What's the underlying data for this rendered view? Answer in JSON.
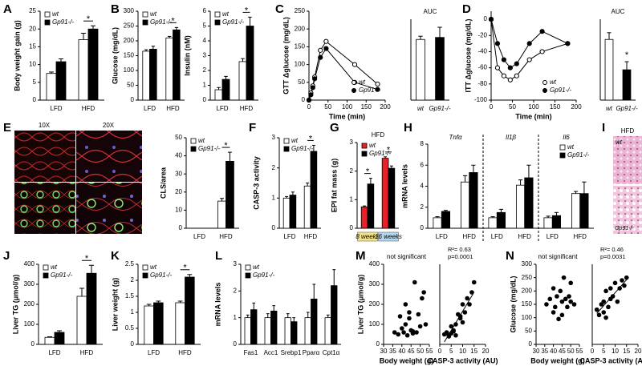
{
  "chart_data": [
    {
      "type": "bar",
      "panel": "A",
      "ylabel": "Body weight gain (g)",
      "categories": [
        "LFD",
        "HFD"
      ],
      "series": [
        {
          "name": "wt",
          "color": "#ffffff",
          "values": [
            7.5,
            17
          ],
          "errors": [
            0.4,
            1.8
          ]
        },
        {
          "name": "Gp91-/-",
          "color": "#000000",
          "values": [
            10.8,
            20
          ],
          "errors": [
            0.8,
            0.9
          ]
        }
      ],
      "ylim": [
        0,
        25
      ],
      "yticks": [
        0,
        5,
        10,
        15,
        20,
        25
      ],
      "legend": "upper left",
      "annotations": [
        "*"
      ]
    },
    {
      "type": "bar",
      "panel": "B",
      "ylabel": "Glucose (mg/dL)",
      "categories": [
        "LFD",
        "HFD"
      ],
      "series": [
        {
          "name": "wt",
          "color": "#ffffff",
          "values": [
            165,
            210
          ],
          "errors": [
            5,
            5
          ]
        },
        {
          "name": "Gp91-/-",
          "color": "#000000",
          "values": [
            172,
            237
          ],
          "errors": [
            10,
            8
          ]
        }
      ],
      "ylim": [
        0,
        300
      ],
      "yticks": [
        0,
        50,
        100,
        150,
        200,
        250,
        300
      ],
      "legend": "upper left",
      "annotations": [
        "*"
      ]
    },
    {
      "type": "bar",
      "ylabel": "Insulin (nM)",
      "categories": [
        "LFD",
        "HFD"
      ],
      "series": [
        {
          "name": "wt",
          "color": "#ffffff",
          "values": [
            0.7,
            2.6
          ],
          "errors": [
            0.15,
            0.2
          ]
        },
        {
          "name": "Gp91-/-",
          "color": "#000000",
          "values": [
            1.4,
            5.0
          ],
          "errors": [
            0.2,
            0.6
          ]
        }
      ],
      "ylim": [
        0,
        6
      ],
      "yticks": [
        0,
        1,
        2,
        3,
        4,
        5,
        6
      ],
      "legend": "upper left",
      "annotations": [
        "*"
      ]
    },
    {
      "type": "line",
      "panel": "C",
      "ylabel": "GTT Δglucose (mg/dL)",
      "xlabel": "Time (min)",
      "x": [
        0,
        5,
        10,
        15,
        30,
        45,
        120,
        180
      ],
      "series": [
        {
          "name": "wt",
          "color": "#ffffff",
          "values": [
            0,
            20,
            40,
            65,
            140,
            165,
            100,
            45
          ]
        },
        {
          "name": "Gp91-/-",
          "color": "#000000",
          "values": [
            0,
            15,
            35,
            60,
            120,
            145,
            50,
            30
          ]
        }
      ],
      "xlim": [
        0,
        200
      ],
      "xticks": [
        0,
        50,
        100,
        150,
        200
      ],
      "ylim": [
        0,
        250
      ],
      "yticks": [
        0,
        50,
        100,
        150,
        200,
        250
      ],
      "legend": "lower right"
    },
    {
      "type": "bar",
      "title": "AUC",
      "categories": [
        "wt",
        "Gp91-/-"
      ],
      "series": [
        {
          "colors": [
            "#ffffff",
            "#000000"
          ],
          "values": [
            15,
            15.5
          ],
          "errors": [
            0.8,
            2.5
          ]
        }
      ],
      "ylim": [
        0,
        20
      ]
    },
    {
      "type": "line",
      "panel": "D",
      "ylabel": "ITT Δglucose (mg/dL)",
      "xlabel": "Time (min)",
      "x": [
        0,
        15,
        30,
        45,
        60,
        90,
        120,
        180
      ],
      "series": [
        {
          "name": "wt",
          "color": "#ffffff",
          "values": [
            0,
            -60,
            -70,
            -75,
            -70,
            -50,
            -40,
            -30
          ]
        },
        {
          "name": "Gp91-/-",
          "color": "#000000",
          "values": [
            0,
            -30,
            -50,
            -60,
            -55,
            -30,
            -15,
            -30
          ]
        }
      ],
      "xlim": [
        0,
        200
      ],
      "xticks": [
        0,
        50,
        100,
        150,
        200
      ],
      "ylim": [
        -100,
        10
      ],
      "yticks": [
        -100,
        -80,
        -60,
        -40,
        -20,
        0
      ],
      "legend": "lower right"
    },
    {
      "type": "bar",
      "title": "AUC",
      "categories": [
        "wt",
        "Gp91-/-"
      ],
      "series": [
        {
          "colors": [
            "#ffffff",
            "#000000"
          ],
          "values": [
            9,
            4.5
          ],
          "errors": [
            1,
            1.2
          ]
        }
      ],
      "ylim": [
        0,
        12
      ],
      "annotations": [
        "*"
      ]
    },
    {
      "type": "bar",
      "ylabel": "CLS/area",
      "categories": [
        "LFD",
        "HFD"
      ],
      "series": [
        {
          "name": "wt",
          "color": "#ffffff",
          "values": [
            0,
            15
          ],
          "errors": [
            0,
            1.5
          ]
        },
        {
          "name": "Gp91-/-",
          "color": "#000000",
          "values": [
            0,
            37
          ],
          "errors": [
            0,
            5
          ]
        }
      ],
      "ylim": [
        0,
        50
      ],
      "yticks": [
        0,
        10,
        20,
        30,
        40,
        50
      ],
      "legend": "upper left",
      "annotations": [
        "*"
      ]
    },
    {
      "type": "bar",
      "panel": "F",
      "ylabel": "CASP-3 activity",
      "categories": [
        "LFD",
        "HFD"
      ],
      "series": [
        {
          "name": "wt",
          "color": "#ffffff",
          "values": [
            1.0,
            1.4
          ],
          "errors": [
            0.05,
            0.1
          ]
        },
        {
          "name": "Gp91-/-",
          "color": "#000000",
          "values": [
            1.1,
            2.55
          ],
          "errors": [
            0.1,
            0.2
          ]
        }
      ],
      "ylim": [
        0,
        3
      ],
      "yticks": [
        0,
        1,
        2,
        3
      ],
      "legend": "upper left",
      "annotations": [
        "*"
      ]
    },
    {
      "type": "bar",
      "panel": "G",
      "title": "HFD",
      "ylabel": "EPI fat mass (g)",
      "categories": [
        "8 weeks",
        "16 weeks"
      ],
      "category_colors": [
        "#f3e38a",
        "#b6d7ee"
      ],
      "series": [
        {
          "name": "wt",
          "color": "#e8202a",
          "values": [
            0.75,
            2.45
          ],
          "errors": [
            0.03,
            0.05
          ]
        },
        {
          "name": "Gp91-/-",
          "color": "#000000",
          "values": [
            1.55,
            2.1
          ],
          "errors": [
            0.2,
            0.08
          ]
        }
      ],
      "ylim": [
        0,
        3
      ],
      "yticks": [
        0,
        1,
        2,
        3
      ],
      "legend": "upper left",
      "annotations": [
        "*",
        "*"
      ]
    },
    {
      "type": "bar",
      "panel": "H",
      "ylabel": "mRNA levels",
      "groups": [
        "Tnfα",
        "Il1β",
        "Il6"
      ],
      "categories": [
        "LFD",
        "HFD",
        "LFD",
        "HFD",
        "LFD",
        "HFD"
      ],
      "series": [
        {
          "name": "wt",
          "color": "#ffffff",
          "values": [
            1,
            4.4,
            1,
            4.1,
            1,
            3.3
          ],
          "errors": [
            0.1,
            0.6,
            0.1,
            0.5,
            0.15,
            0.2
          ]
        },
        {
          "name": "Gp91-/-",
          "color": "#000000",
          "values": [
            1.6,
            5.3,
            1.5,
            4.8,
            1.2,
            3.3
          ],
          "errors": [
            0.1,
            0.7,
            0.3,
            1.2,
            0.3,
            1.1
          ]
        }
      ],
      "ylim": [
        0,
        8
      ],
      "yticks": [
        0,
        2,
        4,
        6,
        8
      ],
      "legend": "upper right"
    },
    {
      "type": "bar",
      "panel": "J",
      "ylabel": "Liver TG (μmol/g)",
      "categories": [
        "LFD",
        "HFD"
      ],
      "series": [
        {
          "name": "wt",
          "color": "#ffffff",
          "values": [
            35,
            240
          ],
          "errors": [
            3,
            40
          ]
        },
        {
          "name": "Gp91-/-",
          "color": "#000000",
          "values": [
            60,
            355
          ],
          "errors": [
            8,
            40
          ]
        }
      ],
      "ylim": [
        0,
        400
      ],
      "yticks": [
        0,
        100,
        200,
        300,
        400
      ],
      "legend": "upper left",
      "annotations": [
        "*"
      ]
    },
    {
      "type": "bar",
      "panel": "K",
      "ylabel": "Liver weight (g)",
      "categories": [
        "LFD",
        "HFD"
      ],
      "series": [
        {
          "name": "wt",
          "color": "#ffffff",
          "values": [
            1.2,
            1.3
          ],
          "errors": [
            0.05,
            0.05
          ]
        },
        {
          "name": "Gp91-/-",
          "color": "#000000",
          "values": [
            1.3,
            2.1
          ],
          "errors": [
            0.05,
            0.08
          ]
        }
      ],
      "ylim": [
        0,
        2.5
      ],
      "yticks": [
        0,
        0.5,
        1,
        1.5,
        2,
        2.5
      ],
      "legend": "upper left",
      "annotations": [
        "*"
      ]
    },
    {
      "type": "bar",
      "panel": "L",
      "ylabel": "mRNA levels",
      "categories": [
        "Fas1",
        "Acc1",
        "Srebp1",
        "Pparα",
        "Cpt1α"
      ],
      "series": [
        {
          "name": "wt",
          "color": "#ffffff",
          "values": [
            1,
            1,
            1,
            1,
            1
          ],
          "errors": [
            0.1,
            0.15,
            0.15,
            0.2,
            0.1
          ]
        },
        {
          "name": "Gp91-/-",
          "color": "#000000",
          "values": [
            1.3,
            1.25,
            0.85,
            1.7,
            2.2
          ],
          "errors": [
            0.25,
            0.2,
            0.15,
            0.55,
            0.6
          ]
        }
      ],
      "ylim": [
        0,
        3
      ],
      "yticks": [
        0,
        1,
        2,
        3
      ],
      "legend": "upper left"
    },
    {
      "type": "scatter",
      "panel": "M",
      "title": "not significant",
      "ylabel": "Liver TG (μmol/g)",
      "xlabel": "Body weight (g)",
      "x": [
        36,
        38,
        39,
        40,
        41,
        42,
        42,
        43,
        44,
        44,
        45,
        46,
        47,
        48,
        49,
        50,
        51,
        52,
        53,
        46
      ],
      "values": [
        60,
        50,
        140,
        80,
        60,
        200,
        100,
        45,
        130,
        160,
        70,
        55,
        310,
        60,
        150,
        90,
        230,
        260,
        100,
        65
      ],
      "xlim": [
        30,
        55
      ],
      "xticks": [
        30,
        35,
        40,
        45,
        50,
        55
      ],
      "ylim": [
        0,
        400
      ],
      "yticks": [
        0,
        100,
        200,
        300,
        400
      ]
    },
    {
      "type": "scatter",
      "annotations": [
        "R²= 0.63",
        "p=0.0001"
      ],
      "xlabel": "CASP-3 activity (AU)",
      "x": [
        2,
        3,
        4,
        5,
        5,
        6,
        7,
        7,
        8,
        9,
        10,
        10,
        11,
        12,
        13,
        14,
        15,
        6,
        3,
        9
      ],
      "values": [
        50,
        60,
        40,
        90,
        55,
        70,
        100,
        45,
        150,
        130,
        200,
        110,
        160,
        230,
        200,
        260,
        310,
        65,
        55,
        140
      ],
      "xlim": [
        0,
        20
      ],
      "xticks": [
        0,
        5,
        10,
        15,
        20
      ],
      "ylim": [
        0,
        400
      ],
      "trendline": true
    },
    {
      "type": "scatter",
      "panel": "N",
      "title": "not significant",
      "ylabel": "Glucose (mg/dL)",
      "xlabel": "Body weight (g)",
      "x": [
        36,
        38,
        40,
        40,
        41,
        42,
        43,
        44,
        45,
        45,
        46,
        47,
        48,
        49,
        50,
        50,
        52
      ],
      "values": [
        150,
        170,
        120,
        210,
        140,
        180,
        95,
        200,
        160,
        110,
        250,
        170,
        140,
        180,
        230,
        160,
        150
      ],
      "xlim": [
        30,
        55
      ],
      "xticks": [
        30,
        35,
        40,
        45,
        50,
        55
      ],
      "ylim": [
        0,
        300
      ],
      "yticks": [
        0,
        50,
        100,
        150,
        200,
        250,
        300
      ]
    },
    {
      "type": "scatter",
      "annotations": [
        "R²= 0.46",
        "p=0.0031"
      ],
      "xlabel": "CASP-3 activity (AU)",
      "x": [
        2,
        3,
        4,
        5,
        5,
        6,
        7,
        8,
        8,
        9,
        10,
        11,
        12,
        13,
        14,
        15,
        6
      ],
      "values": [
        130,
        110,
        150,
        160,
        120,
        200,
        140,
        170,
        210,
        180,
        230,
        160,
        210,
        240,
        220,
        250,
        100
      ],
      "xlim": [
        0,
        20
      ],
      "xticks": [
        0,
        5,
        10,
        15,
        20
      ],
      "ylim": [
        0,
        300
      ],
      "trendline": true
    }
  ],
  "images": [
    {
      "panel": "E",
      "labels": [
        "10X",
        "20X"
      ]
    },
    {
      "panel": "I",
      "title": "HFD",
      "labels": [
        "wt",
        "Gp91-/-"
      ]
    }
  ]
}
